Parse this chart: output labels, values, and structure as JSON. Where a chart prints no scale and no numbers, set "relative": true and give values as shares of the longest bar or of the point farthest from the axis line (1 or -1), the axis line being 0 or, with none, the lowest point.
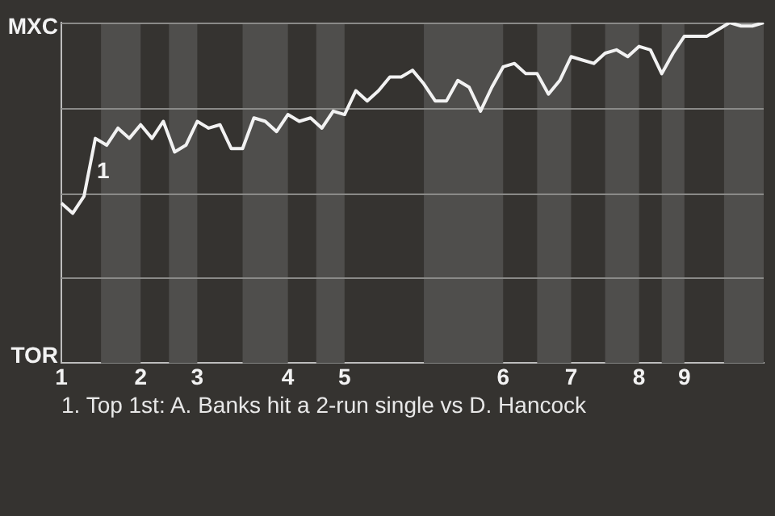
{
  "chart_data": {
    "type": "line",
    "color": "#f2f2f2",
    "relative": true,
    "categories": [
      "1",
      null,
      null,
      null,
      null,
      null,
      null,
      "2",
      null,
      null,
      null,
      null,
      "3",
      null,
      null,
      null,
      null,
      null,
      null,
      null,
      "4",
      null,
      null,
      null,
      null,
      "5",
      null,
      null,
      null,
      null,
      null,
      null,
      null,
      null,
      null,
      null,
      null,
      null,
      null,
      "6",
      null,
      null,
      null,
      null,
      null,
      "7",
      null,
      null,
      null,
      null,
      null,
      "8",
      null,
      null,
      null,
      "9",
      null,
      null,
      null,
      null,
      null,
      null,
      null
    ],
    "values": [
      0.47,
      0.44,
      0.49,
      0.66,
      0.64,
      0.69,
      0.66,
      0.7,
      0.66,
      0.71,
      0.62,
      0.64,
      0.71,
      0.69,
      0.7,
      0.63,
      0.63,
      0.72,
      0.71,
      0.68,
      0.73,
      0.71,
      0.72,
      0.69,
      0.74,
      0.73,
      0.8,
      0.77,
      0.8,
      0.84,
      0.84,
      0.86,
      0.82,
      0.77,
      0.77,
      0.83,
      0.81,
      0.74,
      0.81,
      0.87,
      0.88,
      0.85,
      0.85,
      0.79,
      0.83,
      0.9,
      0.89,
      0.88,
      0.91,
      0.92,
      0.9,
      0.93,
      0.92,
      0.85,
      0.91,
      0.96,
      0.96,
      0.96,
      0.98,
      1.0,
      0.99,
      0.99,
      1.0
    ],
    "grid": "y",
    "legend": false,
    "marker": "none",
    "line_style": "solid",
    "annotations": [
      "MXC",
      "TOR",
      {
        "text": "1",
        "y": 0.66
      },
      "1. Top 1st: A. Banks hit a 2-run single vs D. Hancock"
    ]
  }
}
